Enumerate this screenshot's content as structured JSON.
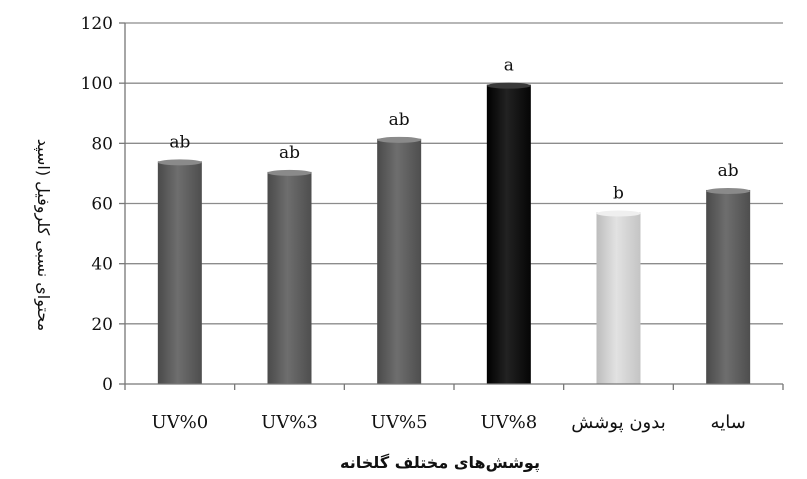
{
  "chart_data": {
    "type": "bar",
    "categories": [
      "UV%0",
      "UV%3",
      "UV%5",
      "UV%8",
      "بدون پوشش",
      "سایه"
    ],
    "values": [
      74,
      70.5,
      81.5,
      99.5,
      57,
      64.5
    ],
    "data_labels": [
      "ab",
      "ab",
      "ab",
      "a",
      "b",
      "ab"
    ],
    "bar_colors": [
      "#626262",
      "#626262",
      "#626262",
      "#111111",
      "#cfcfcf",
      "#626262"
    ],
    "title": "",
    "xlabel": "پوشش‌های مختلف گلخانه",
    "ylabel": "محتوای نسبی کلروفیل (اسپد",
    "ylim": [
      0,
      120
    ],
    "yticks": [
      0,
      20,
      40,
      60,
      80,
      100,
      120
    ],
    "grid": true,
    "legend": "none"
  }
}
